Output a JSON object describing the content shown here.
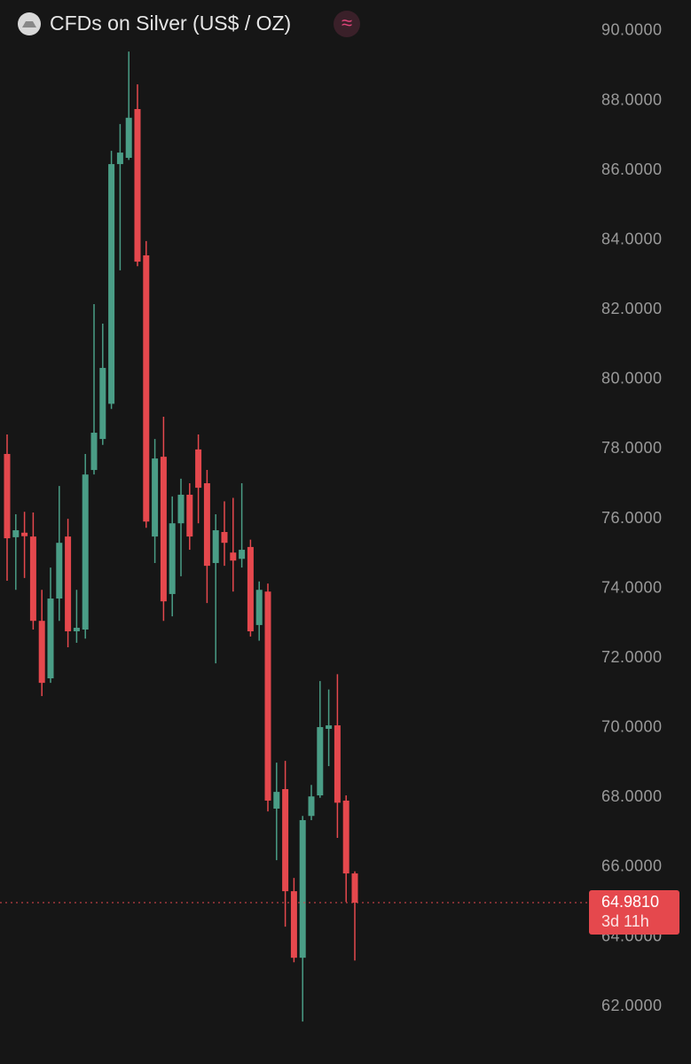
{
  "chart_data": {
    "type": "candlestick",
    "title": "CFDs on Silver (US$ / OZ)",
    "badge": "≈",
    "up_color": "#4a9d86",
    "down_color": "#e5484d",
    "ylim": [
      60.35,
      90.89
    ],
    "yticks": [
      {
        "value": 62,
        "label": "62.0000"
      },
      {
        "value": 64,
        "label": "64.0000"
      },
      {
        "value": 66,
        "label": "66.0000"
      },
      {
        "value": 68,
        "label": "68.0000"
      },
      {
        "value": 70,
        "label": "70.0000"
      },
      {
        "value": 72,
        "label": "72.0000"
      },
      {
        "value": 74,
        "label": "74.0000"
      },
      {
        "value": 76,
        "label": "76.0000"
      },
      {
        "value": 78,
        "label": "78.0000"
      },
      {
        "value": 80,
        "label": "80.0000"
      },
      {
        "value": 82,
        "label": "82.0000"
      },
      {
        "value": 84,
        "label": "84.0000"
      },
      {
        "value": 86,
        "label": "86.0000"
      },
      {
        "value": 88,
        "label": "88.0000"
      },
      {
        "value": 90,
        "label": "90.0000"
      }
    ],
    "current_price": {
      "value": 64.981,
      "label": "64.9810"
    },
    "countdown": "3d 11h",
    "series": {
      "open": [
        77.86,
        75.47,
        75.6,
        75.49,
        73.07,
        71.42,
        73.71,
        75.49,
        72.77,
        72.82,
        77.4,
        78.29,
        79.3,
        86.18,
        86.36,
        87.76,
        83.56,
        75.49,
        77.78,
        73.84,
        75.87,
        76.69,
        77.99,
        77.02,
        74.73,
        75.62,
        75.03,
        74.85,
        75.19,
        72.95,
        73.91,
        67.68,
        68.24,
        65.31,
        63.4,
        67.47,
        68.06,
        69.97,
        70.07,
        67.91,
        65.82
      ],
      "high": [
        78.42,
        76.13,
        76.2,
        76.18,
        73.96,
        74.6,
        76.94,
        76.0,
        73.96,
        77.86,
        82.16,
        81.6,
        86.56,
        87.33,
        89.41,
        88.47,
        83.97,
        78.29,
        78.93,
        76.64,
        77.15,
        77.02,
        78.42,
        77.4,
        76.13,
        76.5,
        76.6,
        77.02,
        75.4,
        74.2,
        74.14,
        69.0,
        69.05,
        65.69,
        67.47,
        68.36,
        71.34,
        71.1,
        71.54,
        68.06,
        65.88
      ],
      "low": [
        74.22,
        73.96,
        74.3,
        72.82,
        70.91,
        71.29,
        73.07,
        72.31,
        72.44,
        72.56,
        77.27,
        78.12,
        79.15,
        83.13,
        86.3,
        83.25,
        75.74,
        74.73,
        73.07,
        73.2,
        74.35,
        75.11,
        75.87,
        73.58,
        71.85,
        74.65,
        73.91,
        74.6,
        72.62,
        72.5,
        67.6,
        66.2,
        64.29,
        63.27,
        61.57,
        67.35,
        67.99,
        68.9,
        66.84,
        65.0,
        63.32
      ],
      "close": [
        75.44,
        75.67,
        75.5,
        73.07,
        71.29,
        73.71,
        75.31,
        72.77,
        72.87,
        77.27,
        78.47,
        80.33,
        86.18,
        86.51,
        87.51,
        83.38,
        75.92,
        77.73,
        73.63,
        75.87,
        76.69,
        75.49,
        76.89,
        74.65,
        75.67,
        75.31,
        74.8,
        75.11,
        72.77,
        73.96,
        67.91,
        68.16,
        65.31,
        63.4,
        67.35,
        68.03,
        70.02,
        70.07,
        67.85,
        65.82,
        64.981
      ]
    }
  }
}
